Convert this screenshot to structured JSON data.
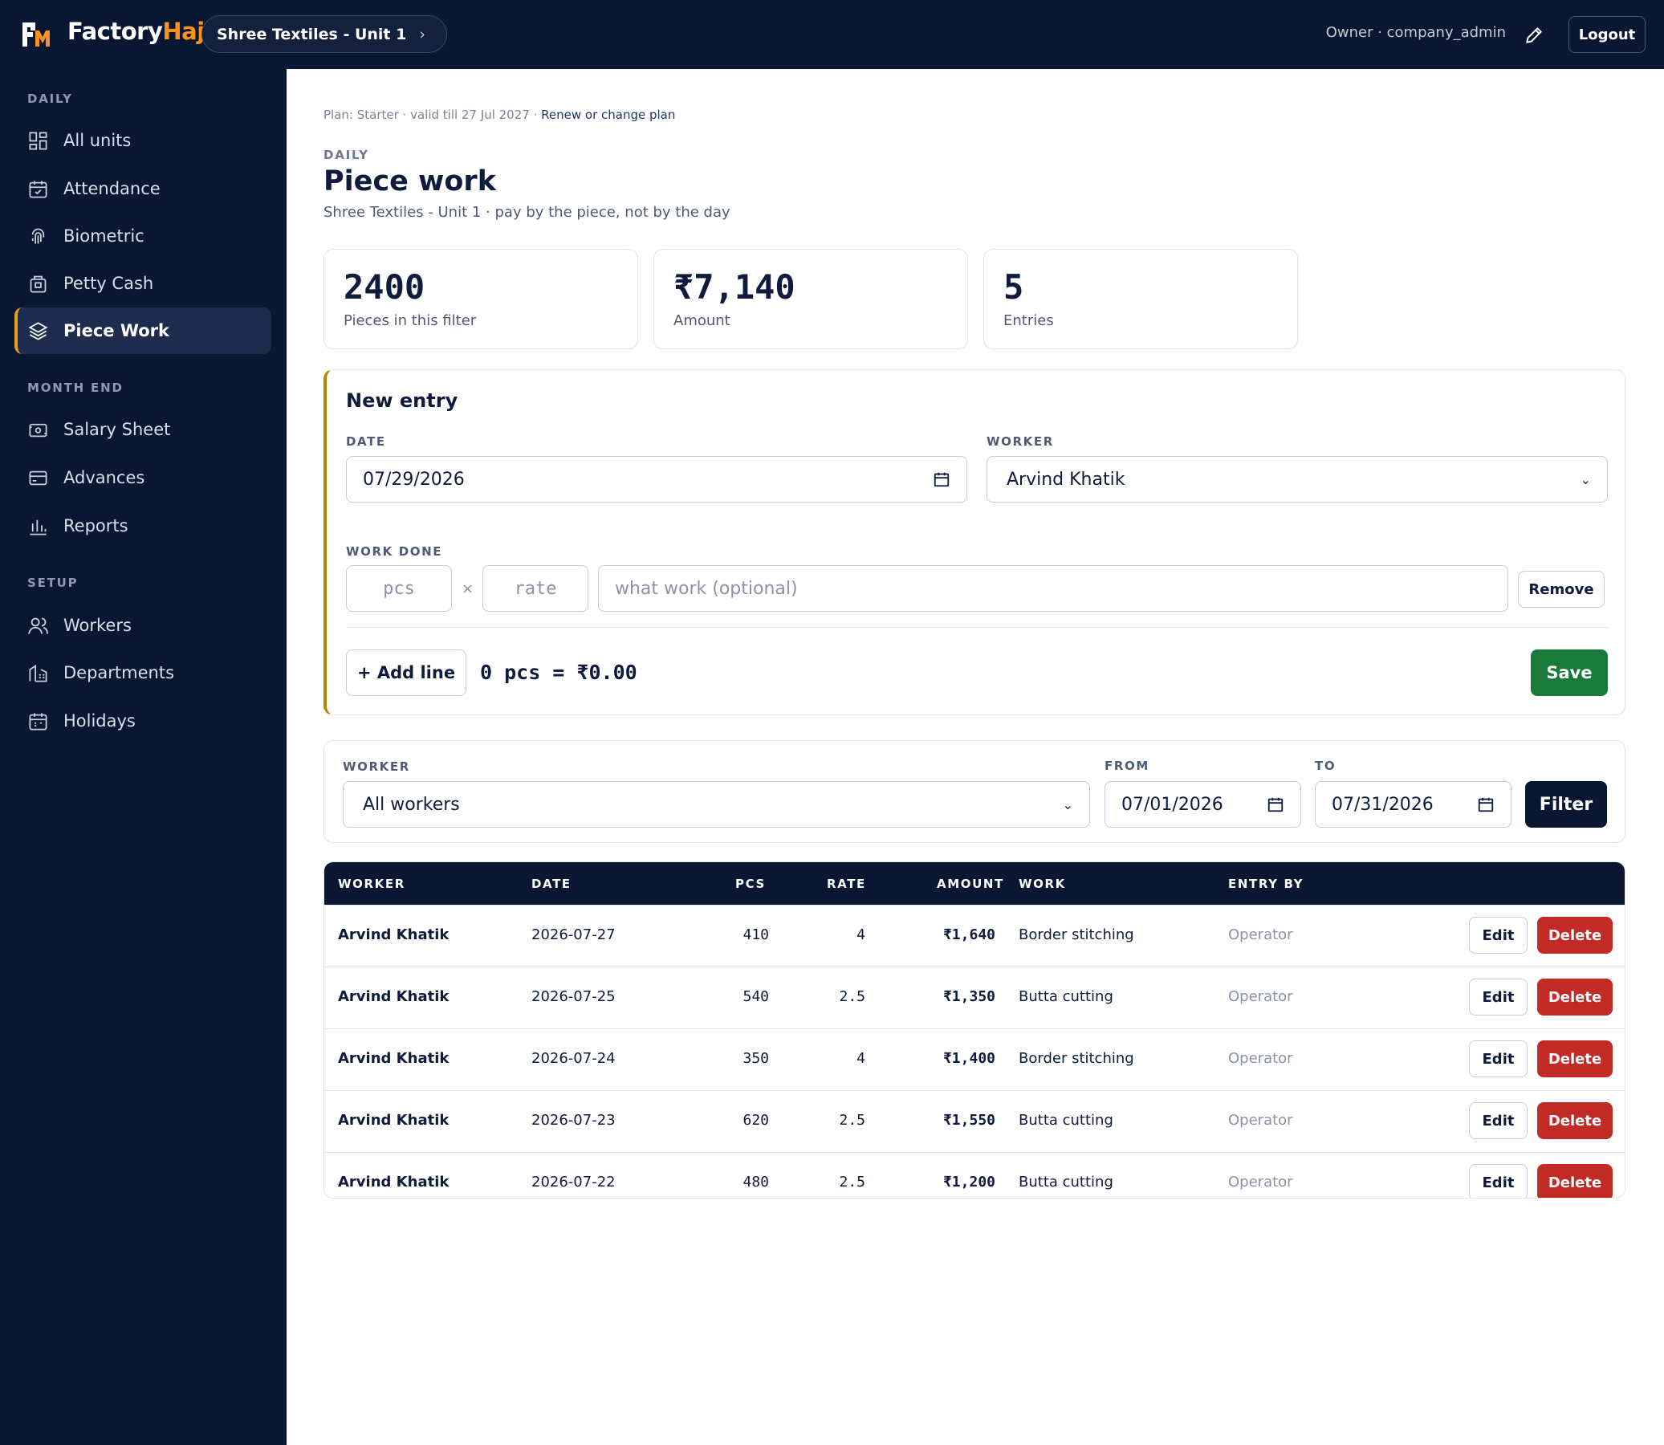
{
  "header": {
    "brand_main": "Factory",
    "brand_accent": "Hajri",
    "unit_selector": "Shree Textiles - Unit 1",
    "chevron": "›",
    "owner": "Owner · company_admin",
    "logout": "Logout"
  },
  "sidebar": {
    "sections": {
      "daily": "DAILY",
      "month_end": "MONTH END",
      "setup": "SETUP"
    },
    "items": [
      {
        "label": "All units",
        "icon": "grid-icon"
      },
      {
        "label": "Attendance",
        "icon": "calendar-check-icon"
      },
      {
        "label": "Biometric",
        "icon": "fingerprint-icon"
      },
      {
        "label": "Petty Cash",
        "icon": "cash-box-icon"
      },
      {
        "label": "Piece Work",
        "icon": "layers-icon",
        "active": true
      },
      {
        "label": "Salary Sheet",
        "icon": "money-icon"
      },
      {
        "label": "Advances",
        "icon": "card-icon"
      },
      {
        "label": "Reports",
        "icon": "bar-chart-icon"
      },
      {
        "label": "Workers",
        "icon": "users-icon"
      },
      {
        "label": "Departments",
        "icon": "building-icon"
      },
      {
        "label": "Holidays",
        "icon": "calendar-icon"
      }
    ],
    "accent_color": "#e8a317"
  },
  "page": {
    "plan_text": "Plan: Starter · valid till 27 Jul 2027 ·",
    "plan_link": "Renew or change plan",
    "eyebrow": "DAILY",
    "title": "Piece work",
    "subtitle": "Shree Textiles - Unit 1 · pay by the piece, not by the day"
  },
  "stats": [
    {
      "value": "2400",
      "label": "Pieces in this filter"
    },
    {
      "value": "₹7,140",
      "label": "Amount"
    },
    {
      "value": "5",
      "label": "Entries"
    }
  ],
  "new_entry": {
    "title": "New entry",
    "date_label": "DATE",
    "date_value": "07/29/2026",
    "worker_label": "WORKER",
    "worker_value": "Arvind Khatik",
    "work_done_label": "WORK DONE",
    "pcs_placeholder": "pcs",
    "times": "×",
    "rate_placeholder": "rate",
    "work_placeholder": "what work (optional)",
    "remove": "Remove",
    "add_line": "+ Add line",
    "summary": "0 pcs = ₹0.00",
    "save": "Save",
    "save_color": "#1a7a3c"
  },
  "filter": {
    "worker_label": "WORKER",
    "worker_value": "All workers",
    "from_label": "FROM",
    "from_value": "07/01/2026",
    "to_label": "TO",
    "to_value": "07/31/2026",
    "button": "Filter"
  },
  "table": {
    "headers": [
      "WORKER",
      "DATE",
      "PCS",
      "RATE",
      "AMOUNT",
      "WORK",
      "ENTRY BY"
    ],
    "rows": [
      {
        "worker": "Arvind Khatik",
        "date": "2026-07-27",
        "pcs": "410",
        "rate": "4",
        "amount": "₹1,640",
        "work": "Border stitching",
        "entry_by": "Operator"
      },
      {
        "worker": "Arvind Khatik",
        "date": "2026-07-25",
        "pcs": "540",
        "rate": "2.5",
        "amount": "₹1,350",
        "work": "Butta cutting",
        "entry_by": "Operator"
      },
      {
        "worker": "Arvind Khatik",
        "date": "2026-07-24",
        "pcs": "350",
        "rate": "4",
        "amount": "₹1,400",
        "work": "Border stitching",
        "entry_by": "Operator"
      },
      {
        "worker": "Arvind Khatik",
        "date": "2026-07-23",
        "pcs": "620",
        "rate": "2.5",
        "amount": "₹1,550",
        "work": "Butta cutting",
        "entry_by": "Operator"
      },
      {
        "worker": "Arvind Khatik",
        "date": "2026-07-22",
        "pcs": "480",
        "rate": "2.5",
        "amount": "₹1,200",
        "work": "Butta cutting",
        "entry_by": "Operator"
      }
    ],
    "edit": "Edit",
    "delete": "Delete",
    "delete_color": "#c22a25"
  }
}
